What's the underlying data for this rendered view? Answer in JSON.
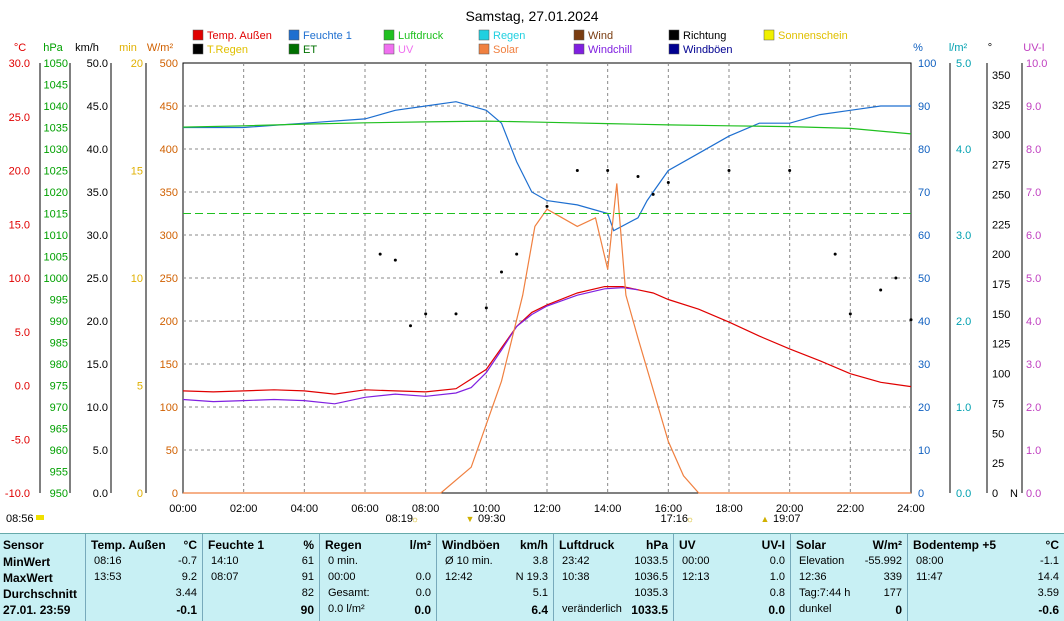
{
  "chart_data": {
    "type": "line",
    "title": "Samstag, 27.01.2024",
    "x_ticks": [
      "00:00",
      "02:00",
      "04:00",
      "06:00",
      "08:00",
      "10:00",
      "12:00",
      "14:00",
      "16:00",
      "18:00",
      "20:00",
      "22:00",
      "24:00"
    ],
    "axes": {
      "temp": {
        "unit": "°C",
        "ticks": [
          "30.0",
          "25.0",
          "20.0",
          "15.0",
          "10.0",
          "5.0",
          "0.0",
          "-5.0",
          "-10.0"
        ],
        "range": [
          -10,
          30
        ],
        "color": "#e00000"
      },
      "pressure": {
        "unit": "hPa",
        "ticks": [
          "1050",
          "1045",
          "1040",
          "1035",
          "1030",
          "1025",
          "1020",
          "1015",
          "1010",
          "1005",
          "1000",
          "995",
          "990",
          "985",
          "980",
          "975",
          "970",
          "965",
          "960",
          "955",
          "950"
        ],
        "range": [
          950,
          1050
        ],
        "color": "#00a000"
      },
      "wind": {
        "unit": "km/h",
        "ticks": [
          "50.0",
          "45.0",
          "40.0",
          "35.0",
          "30.0",
          "25.0",
          "20.0",
          "15.0",
          "10.0",
          "5.0",
          "0.0"
        ],
        "range": [
          0,
          50
        ],
        "color": "#000000"
      },
      "sunshine": {
        "unit": "min",
        "ticks": [
          "20",
          "15",
          "10",
          "5",
          "0"
        ],
        "range": [
          0,
          20
        ],
        "color": "#e0b000"
      },
      "solar": {
        "unit": "W/m²",
        "ticks": [
          "500",
          "450",
          "400",
          "350",
          "300",
          "250",
          "200",
          "150",
          "100",
          "50",
          "0"
        ],
        "range": [
          0,
          500
        ],
        "color": "#d06000"
      },
      "humidity": {
        "unit": "%",
        "ticks": [
          "100",
          "90",
          "80",
          "70",
          "60",
          "50",
          "40",
          "30",
          "20",
          "10",
          "0"
        ],
        "range": [
          0,
          100
        ],
        "color": "#1060c0"
      },
      "rain": {
        "unit": "l/m²",
        "ticks": [
          "5.0",
          "4.0",
          "3.0",
          "2.0",
          "1.0",
          "0.0"
        ],
        "range": [
          0,
          5
        ],
        "color": "#00a0b0"
      },
      "direction": {
        "unit": "°",
        "ticks": [
          "350",
          "325",
          "300",
          "275",
          "250",
          "225",
          "200",
          "175",
          "150",
          "125",
          "100",
          "75",
          "50",
          "25",
          "0"
        ],
        "range": [
          0,
          360
        ],
        "extra": "N",
        "color": "#000000"
      },
      "uv": {
        "unit": "UV-I",
        "ticks": [
          "10.0",
          "9.0",
          "8.0",
          "7.0",
          "6.0",
          "5.0",
          "4.0",
          "3.0",
          "2.0",
          "1.0",
          "0.0"
        ],
        "range": [
          0,
          10
        ],
        "color": "#c040c0"
      }
    },
    "legend": [
      {
        "label": "Temp. Außen",
        "color": "#e00000"
      },
      {
        "label": "Feuchte 1",
        "color": "#1e6fd0"
      },
      {
        "label": "Luftdruck",
        "color": "#20c020"
      },
      {
        "label": "Regen",
        "color": "#20d0e0"
      },
      {
        "label": "Wind",
        "color": "#7a3c10"
      },
      {
        "label": "Richtung",
        "color": "#000000"
      },
      {
        "label": "Sonnenschein",
        "color": "#f0f000"
      },
      {
        "label": "T.Regen",
        "color": "#000000"
      },
      {
        "label": "ET",
        "color": "#007000"
      },
      {
        "label": "UV",
        "color": "#f070f0"
      },
      {
        "label": "Solar",
        "color": "#f08040"
      },
      {
        "label": "Windchill",
        "color": "#8020e0"
      },
      {
        "label": "Windböen",
        "color": "#000090"
      }
    ],
    "series": [
      {
        "name": "Temp. Außen",
        "axis": "temp",
        "x": [
          0,
          1,
          2,
          3,
          4,
          5,
          6,
          7,
          8,
          9,
          10,
          10.5,
          11,
          11.5,
          12,
          13,
          13.9,
          14.5,
          15,
          15.5,
          16,
          17,
          18,
          19,
          20,
          21,
          22,
          23,
          24
        ],
        "values": [
          -0.5,
          -0.6,
          -0.5,
          -0.4,
          -0.5,
          -0.8,
          -0.4,
          -0.5,
          -0.6,
          -0.3,
          1.5,
          3.5,
          5.5,
          6.8,
          7.5,
          8.6,
          9.2,
          9.2,
          8.9,
          8.6,
          8.0,
          7.1,
          5.9,
          4.6,
          3.4,
          2.3,
          1.1,
          0.3,
          -0.1
        ]
      },
      {
        "name": "Windchill",
        "axis": "temp",
        "x": [
          0,
          1,
          2,
          3,
          4,
          5,
          6,
          7,
          8,
          9,
          9.5,
          10,
          10.5,
          11,
          11.5,
          12,
          13,
          13.9,
          14.5,
          15
        ],
        "values": [
          -1.3,
          -1.5,
          -1.4,
          -1.3,
          -1.4,
          -1.7,
          -1.1,
          -0.8,
          -1.0,
          -0.7,
          -0.2,
          1.2,
          3.3,
          5.5,
          6.6,
          7.4,
          8.4,
          9.0,
          9.1,
          8.9
        ]
      },
      {
        "name": "Feuchte 1",
        "axis": "humidity",
        "x": [
          0,
          2,
          4,
          6,
          7,
          8,
          9,
          10,
          10.5,
          11,
          11.5,
          12,
          13,
          14,
          14.2,
          15,
          15.3,
          16,
          17,
          18,
          19,
          20,
          21,
          22,
          23,
          24
        ],
        "values": [
          85,
          85,
          86,
          87,
          89,
          90,
          91,
          89,
          86,
          77,
          70,
          68,
          67,
          65,
          61,
          64,
          68,
          75,
          79,
          83,
          86,
          86,
          88,
          89,
          90,
          90
        ]
      },
      {
        "name": "Luftdruck",
        "axis": "pressure",
        "x": [
          0,
          2,
          4,
          6,
          8,
          10,
          12,
          14,
          16,
          18,
          20,
          22,
          24
        ],
        "values": [
          1035.1,
          1035.4,
          1035.8,
          1036.1,
          1036.3,
          1036.5,
          1036.2,
          1035.9,
          1035.6,
          1035.4,
          1035.2,
          1034.8,
          1033.5
        ]
      },
      {
        "name": "Solar",
        "axis": "solar",
        "x": [
          0,
          8.5,
          9.5,
          10.5,
          11.2,
          11.6,
          12,
          13,
          13.6,
          14,
          14.3,
          14.6,
          15,
          15.5,
          16,
          16.5,
          17,
          24
        ],
        "values": [
          0,
          0,
          30,
          130,
          230,
          310,
          330,
          310,
          320,
          260,
          360,
          230,
          180,
          120,
          60,
          20,
          0,
          0
        ]
      },
      {
        "name": "Richtung",
        "axis": "direction",
        "x": [
          6.5,
          7.0,
          7.5,
          8.0,
          9.0,
          10.0,
          10.5,
          11.0,
          12.0,
          13.0,
          14.0,
          15.0,
          15.5,
          16.0,
          18.0,
          20.0,
          21.5,
          22.0,
          23.0,
          23.5,
          24.0
        ],
        "values": [
          200,
          195,
          140,
          150,
          150,
          155,
          185,
          200,
          240,
          270,
          270,
          265,
          250,
          260,
          270,
          270,
          200,
          150,
          170,
          180,
          145
        ]
      }
    ],
    "markers": [
      {
        "label": "08:19",
        "symbol": "sunrise"
      },
      {
        "label": "09:30",
        "symbol": "arrow-down"
      },
      {
        "label": "17:16",
        "symbol": "sunset"
      },
      {
        "label": "19:07",
        "symbol": "arrow-up"
      }
    ],
    "corner_time": "08:56"
  },
  "table": {
    "sensor": {
      "header": "Sensor",
      "rows": [
        "MinWert",
        "MaxWert",
        "Durchschnitt",
        "27.01. 23:59"
      ]
    },
    "temp": {
      "header": "Temp. Außen",
      "unit": "°C",
      "rows": [
        [
          "08:16",
          "-0.7"
        ],
        [
          "13:53",
          "9.2"
        ],
        [
          "",
          "3.44"
        ],
        [
          "",
          "-0.1"
        ]
      ]
    },
    "hum": {
      "header": "Feuchte 1",
      "unit": "%",
      "rows": [
        [
          "14:10",
          "61"
        ],
        [
          "08:07",
          "91"
        ],
        [
          "",
          "82"
        ],
        [
          "",
          "90"
        ]
      ]
    },
    "rain": {
      "header": "Regen",
      "unit": "l/m²",
      "rows": [
        [
          "0 min.",
          ""
        ],
        [
          "00:00",
          "0.0"
        ],
        [
          "Gesamt:",
          "0.0"
        ],
        [
          "0.0 l/m²",
          "0.0"
        ]
      ]
    },
    "gust": {
      "header": "Windböen",
      "unit": "km/h",
      "rows": [
        [
          "Ø 10 min.",
          "3.8"
        ],
        [
          "12:42",
          "N 19.3"
        ],
        [
          "",
          "5.1"
        ],
        [
          "",
          "6.4"
        ]
      ]
    },
    "press": {
      "header": "Luftdruck",
      "unit": "hPa",
      "rows": [
        [
          "23:42",
          "1033.5"
        ],
        [
          "10:38",
          "1036.5"
        ],
        [
          "",
          "1035.3"
        ],
        [
          "veränderlich",
          "1033.5"
        ]
      ]
    },
    "uv": {
      "header": "UV",
      "unit": "UV-I",
      "rows": [
        [
          "00:00",
          "0.0"
        ],
        [
          "12:13",
          "1.0"
        ],
        [
          "",
          "0.8"
        ],
        [
          "",
          "0.0"
        ]
      ]
    },
    "solar": {
      "header": "Solar",
      "unit": "W/m²",
      "rows": [
        [
          "Elevation",
          "-55.992"
        ],
        [
          "12:36",
          "339"
        ],
        [
          "Tag:7:44 h",
          "177"
        ],
        [
          "dunkel",
          "0"
        ]
      ]
    },
    "soil": {
      "header": "Bodentemp +5",
      "unit": "°C",
      "rows": [
        [
          "08:00",
          "-1.1"
        ],
        [
          "11:47",
          "14.4"
        ],
        [
          "",
          "3.59"
        ],
        [
          "",
          "-0.6"
        ]
      ]
    }
  }
}
